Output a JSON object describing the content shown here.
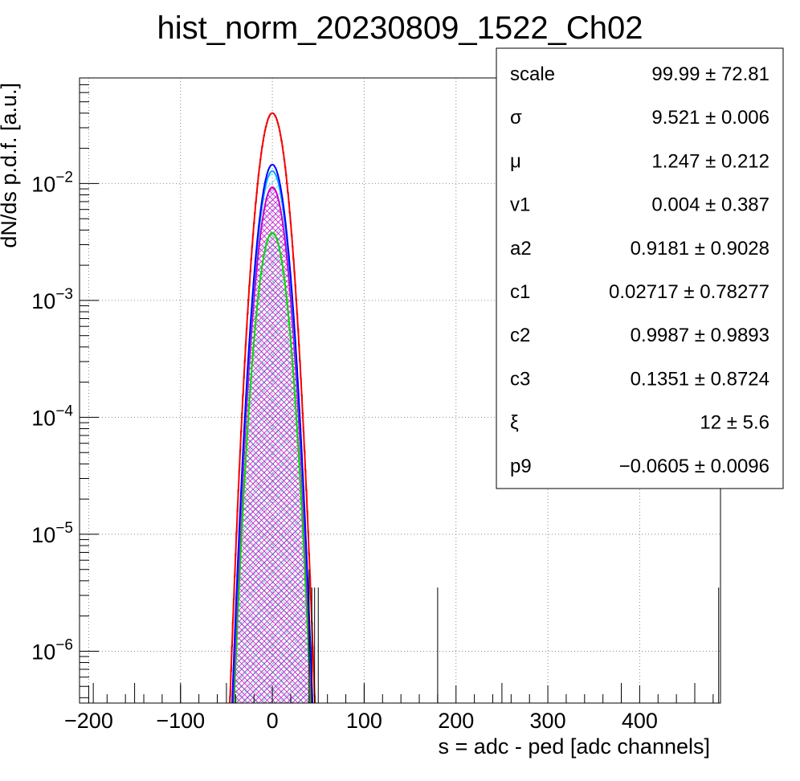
{
  "chart_data": {
    "type": "line",
    "title": "hist_norm_20230809_1522_Ch02",
    "xlabel": "s = adc - ped [adc channels]",
    "ylabel": "dN/ds p.d.f. [a.u.]",
    "xlim": [
      -210,
      488
    ],
    "ylim": [
      3.6e-07,
      0.08
    ],
    "yscale": "log",
    "grid": true,
    "x_ticks": [
      -200,
      -100,
      0,
      100,
      200,
      300,
      400
    ],
    "x_tick_labels": [
      "−200",
      "−100",
      "0",
      "100",
      "200",
      "300",
      "400"
    ],
    "y_ticks": [
      1e-06,
      1e-05,
      0.0001,
      0.001,
      0.01
    ],
    "y_tick_labels": [
      {
        "base": "10",
        "exp": "−6"
      },
      {
        "base": "10",
        "exp": "−5"
      },
      {
        "base": "10",
        "exp": "−4"
      },
      {
        "base": "10",
        "exp": "−3"
      },
      {
        "base": "10",
        "exp": "−2"
      }
    ],
    "curves": [
      {
        "color": "#ff0000",
        "peak": 0.04,
        "mean": 0,
        "sigma": 9.6,
        "fill": "none"
      },
      {
        "color": "#0000ff",
        "peak": 0.0145,
        "mean": 0,
        "sigma": 9.5,
        "fill": "none"
      },
      {
        "color": "#00aaff",
        "peak": 0.0128,
        "mean": 0,
        "sigma": 9.5,
        "fill": "cyan"
      },
      {
        "color": "#cc00cc",
        "peak": 0.0093,
        "mean": 0,
        "sigma": 9.5,
        "fill": "magenta"
      },
      {
        "color": "#00dd00",
        "peak": 0.0038,
        "mean": 0,
        "sigma": 9.7,
        "fill": "green"
      }
    ],
    "histogram_color": "#000000",
    "histogram_spikes": [
      {
        "x": 40,
        "y": 5e-06
      },
      {
        "x": 43,
        "y": 3.5e-06
      },
      {
        "x": 46,
        "y": 3.5e-06
      },
      {
        "x": 50,
        "y": 3.5e-06
      },
      {
        "x": 180,
        "y": 3.5e-06
      },
      {
        "x": 486,
        "y": 3.5e-06
      }
    ],
    "stats_box": {
      "placement": "top-right",
      "rows": [
        {
          "name": "scale",
          "value": "99.99",
          "error": "72.81"
        },
        {
          "name": "σ",
          "value": "9.521",
          "error": "0.006"
        },
        {
          "name": "μ",
          "value": "1.247",
          "error": "0.212"
        },
        {
          "name": "v1",
          "value": "0.004",
          "error": "0.387"
        },
        {
          "name": "a2",
          "value": "0.9181",
          "error": "0.9028"
        },
        {
          "name": "c1",
          "value": "0.02717",
          "error": "0.78277"
        },
        {
          "name": "c2",
          "value": "0.9987",
          "error": "0.9893"
        },
        {
          "name": "c3",
          "value": "0.1351",
          "error": "0.8724"
        },
        {
          "name": "ξ",
          "value": "12",
          "error": "5.6"
        },
        {
          "name": "p9",
          "value": "−0.0605",
          "error": "0.0096"
        }
      ],
      "pm_symbol": "±"
    }
  }
}
